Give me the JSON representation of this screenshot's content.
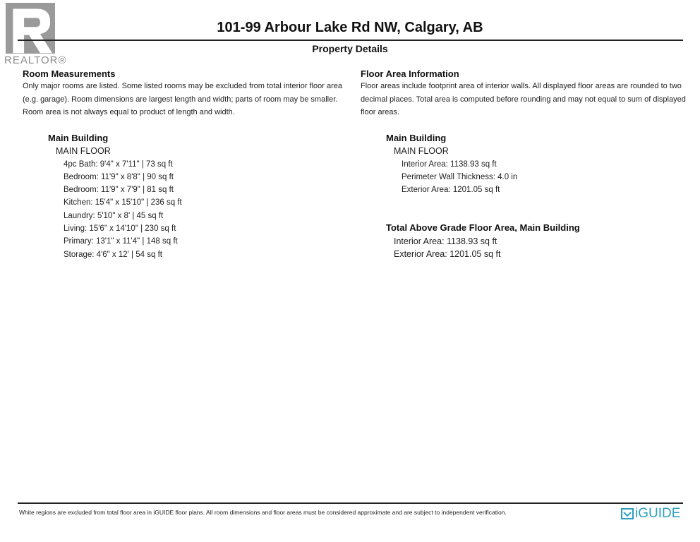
{
  "header": {
    "title": "101-99 Arbour Lake Rd NW, Calgary, AB",
    "subtitle": "Property Details"
  },
  "logo": {
    "text": "REALTOR®",
    "color": "#7a7a7a"
  },
  "room_measurements": {
    "heading": "Room Measurements",
    "lines": [
      "Only major rooms are listed. Some listed rooms may be excluded from total interior floor area",
      "(e.g. garage). Room dimensions are largest length and width; parts of room may be smaller.",
      "Room area is not always equal to product of length and width."
    ],
    "building": "Main Building",
    "floor": "MAIN FLOOR",
    "rooms": [
      "4pc Bath: 9'4\" x 7'11\" | 73 sq ft",
      "Bedroom: 11'9\" x 8'8\" | 90 sq ft",
      "Bedroom: 11'9\" x 7'9\" | 81 sq ft",
      "Kitchen: 15'4\" x 15'10\" | 236 sq ft",
      "Laundry: 5'10\" x 8' | 45 sq ft",
      "Living: 15'6\" x 14'10\" | 230 sq ft",
      "Primary: 13'1\" x 11'4\" | 148 sq ft",
      "Storage: 4'6\" x 12' | 54 sq ft"
    ]
  },
  "floor_area": {
    "heading": "Floor Area Information",
    "lines": [
      "Floor areas include footprint area of interior walls. All displayed floor areas are rounded to two",
      "decimal places. Total area is computed before rounding and may not equal to sum of displayed",
      "floor areas."
    ],
    "building": "Main Building",
    "floor": "MAIN FLOOR",
    "items": [
      "Interior Area: 1138.93 sq ft",
      "Perimeter Wall Thickness: 4.0 in",
      "Exterior Area: 1201.05 sq ft"
    ],
    "total_heading": "Total Above Grade Floor Area, Main Building",
    "total_items": [
      "Interior Area: 1138.93 sq ft",
      "Exterior Area: 1201.05 sq ft"
    ]
  },
  "footer": {
    "disclaimer": "White regions are excluded from total floor area in iGUIDE floor plans. All room dimensions and floor areas must be considered approximate and are subject to independent verification.",
    "brand": "iGUIDE",
    "brand_color": "#2a9fc0"
  }
}
